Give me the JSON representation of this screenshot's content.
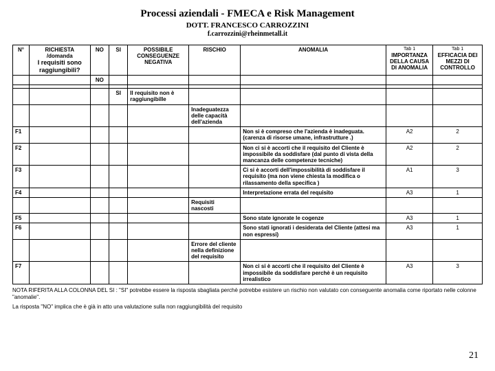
{
  "header": {
    "title": "Processi aziendali - FMECA e Risk Management",
    "subtitle": "DOTT. FRANCESCO CARROZZINI",
    "email": "f.carrozzini@rheinmetall.it"
  },
  "columns": {
    "n": "N°",
    "richiesta": "RICHIESTA /domanda",
    "sotto": "I requisiti sono raggiungibili?",
    "no": "NO",
    "si": "SI",
    "neg": "POSSIBILE CONSEGUENZE NEGATIVA",
    "rischio": "RISCHIO",
    "anomalia": "ANOMALIA",
    "tab1a": "Tab 1",
    "tab1b": "Tab 1",
    "importanza": "IMPORTANZA DELLA CAUSA DI ANOMALIA",
    "efficacia": "EFFICACIA DEI MEZZI DI CONTROLLO"
  },
  "labels": {
    "NO": "NO",
    "SI": "SI"
  },
  "neg1": "Il requisito non è raggiungibille",
  "ris1": "Inadeguatezza delle capacità dell'azienda",
  "ris2": "Requisiti nascosti",
  "ris3": "Errore del cliente nella definizione del requisito",
  "row": {
    "f1": {
      "n": "F1",
      "anom": "Non si è compreso che l'azienda è inadeguata. (carenza di risorse umane, infrastrutture  .)",
      "imp": "A2",
      "eff": "2"
    },
    "f2": {
      "n": "F2",
      "anom": "Non ci si è accorti che il requisito del Cliente è impossibile da soddisfare (dal punto di vista della mancanza delle competenze tecniche)",
      "imp": "A2",
      "eff": "2"
    },
    "f3": {
      "n": "F3",
      "anom": "Ci si è accorti dell'impossibilità di soddisfare il requisito  (ma non viene chiesta la modifica o rilassamento della specifica )",
      "imp": "A1",
      "eff": "3"
    },
    "f4": {
      "n": "F4",
      "anom": "Interpretazione errata del requisito",
      "imp": "A3",
      "eff": "1"
    },
    "f5": {
      "n": "F5",
      "anom": "Sono state ignorate le cogenze",
      "imp": "A3",
      "eff": "1"
    },
    "f6": {
      "n": "F6",
      "anom": "Sono stati ignorati i desiderata del Cliente (attesi ma non espressi)",
      "imp": "A3",
      "eff": "1"
    },
    "f7": {
      "n": "F7",
      "anom": "Non ci si è accorti che il requisito del Cliente è impossibile da soddisfare perchè è un requisito irrealistico",
      "imp": "A3",
      "eff": "3"
    }
  },
  "note1": "NOTA  RIFERITA ALLA COLONNA DEL SI :  \"SI\" potrebbe essere la risposta sbagliata perchè  potrebbe esistere un rischio non valutato con conseguente anomalia come riportato nelle colonne \"anomalie\".",
  "note2": "La risposta \"NO\" implica che è già in atto una valutazione sulla non raggiungibilità del requisito",
  "page": "21"
}
